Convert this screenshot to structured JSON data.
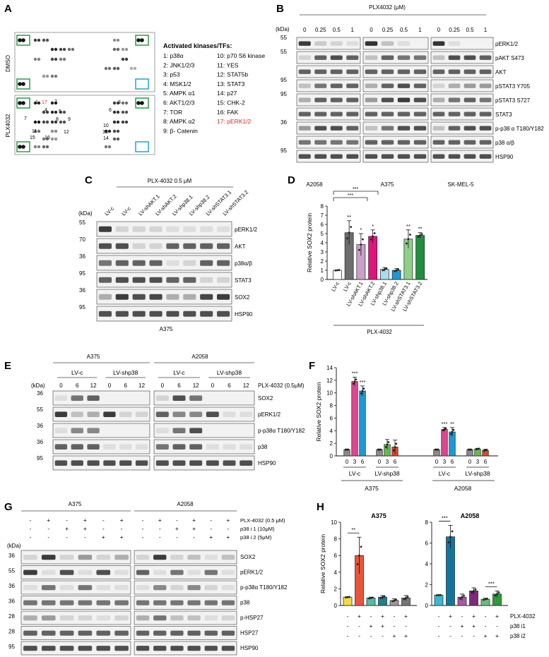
{
  "panels": {
    "A": {
      "letter": "A",
      "conditions": [
        "DMSO",
        "PLX4032"
      ],
      "legend_title": "Activated kinases/TFs:",
      "kinases_left": [
        "1: p38α",
        "2: JNK1/2/3",
        "3: p53",
        "4: MSK1/2",
        "5: AMPK α1",
        "6: AKT1/2/3",
        "7: TOR",
        "8: AMPK α2",
        "9: β- Catenin"
      ],
      "kinases_right": [
        "10: p70 S6 kinase",
        "11: YES",
        "12: STAT5b",
        "13: STAT3",
        "14: p27",
        "15: CHK-2",
        "16: FAK",
        "17: pERK1/2"
      ],
      "highlight_color": "#e0262b",
      "box_green": "#2e9a4a",
      "box_blue": "#1ea3d6",
      "dot_numbers": [
        "1",
        "17",
        "2",
        "4",
        "5",
        "3",
        "6",
        "7",
        "8",
        "9",
        "10",
        "11",
        "12",
        "13",
        "14",
        "15",
        "16"
      ]
    },
    "B": {
      "letter": "B",
      "treatment": "PLX4032 (μM)",
      "kda_label": "(kDa)",
      "doses": [
        "0",
        "0.25",
        "0.5",
        "1"
      ],
      "cell_lines": [
        "A2058",
        "A375",
        "SK-MEL-5"
      ],
      "bands": [
        "pERK1/2",
        "pAKT S473",
        "AKT",
        "pSTAT3 Y705",
        "pSTAT3 S727",
        "STAT3",
        "p-p38 α T180/Y182",
        "p38 α/β",
        "HSP90"
      ],
      "kda": [
        "55",
        "55",
        "95",
        "95",
        "36",
        "95"
      ]
    },
    "C": {
      "letter": "C",
      "treatment": "PLX-4032 0.5 μM",
      "kda_label": "(kDa)",
      "lanes": [
        "LV-c",
        "LV-c",
        "LV-shAKT.1",
        "LV-shAKT.2",
        "LV-shp38.1",
        "LV-shp38.2",
        "LV-shSTAT3.1",
        "LV-shSTAT3.2"
      ],
      "bands": [
        "pERK1/2",
        "AKT",
        "p38α/β",
        "STAT3",
        "SOX2",
        "HSP90"
      ],
      "kda": [
        "55",
        "70",
        "36",
        "95",
        "36",
        "95"
      ],
      "cell_line": "A375"
    },
    "D": {
      "letter": "D",
      "group_label": "PLX-4032",
      "sig_top": [
        "***",
        "***"
      ]
    },
    "E": {
      "letter": "E",
      "kda_label": "(kDa)",
      "cell_lines": [
        "A375",
        "A2058"
      ],
      "groups": [
        "LV-c",
        "LV-shp38"
      ],
      "times": [
        "0",
        "6",
        "12"
      ],
      "treatment": "PLX-4032 (0.5μM)",
      "bands": [
        "SOX2",
        "pERK1/2",
        "p-p38α T180/Y182",
        "p38",
        "HSP90"
      ],
      "kda": [
        "36",
        "55",
        "36",
        "36",
        "95"
      ]
    },
    "F": {
      "letter": "F",
      "time_ticks": [
        "0",
        "3",
        "6"
      ],
      "groups": [
        "LV-c",
        "LV-shp38"
      ],
      "cell_lines": [
        "A375",
        "A2058"
      ]
    },
    "G": {
      "letter": "G",
      "kda_label": "(kDa)",
      "cell_lines": [
        "A375",
        "A2058"
      ],
      "row_labels": [
        "PLX-4032 (0.5 μM)",
        "p38 i 1 (10μM)",
        "p38 i 2 (5μM)"
      ],
      "signs_plx": [
        "-",
        "+",
        "-",
        "+",
        "-",
        "+"
      ],
      "signs_i1": [
        "-",
        "-",
        "+",
        "+",
        "-",
        "-"
      ],
      "signs_i2": [
        "-",
        "-",
        "-",
        "-",
        "+",
        "+"
      ],
      "bands": [
        "SOX2",
        "pERK1/2",
        "p-p38α T180/Y182",
        "p38",
        "p-HSP27",
        "HSP27",
        "HSP90"
      ],
      "kda": [
        "36",
        "55",
        "36",
        "36",
        "28",
        "28",
        "95"
      ]
    },
    "H": {
      "letter": "H",
      "row_labels": [
        "PLX-4032",
        "p38 i1",
        "p38 i2"
      ],
      "signs_plx": [
        "-",
        "+",
        "-",
        "+",
        "-",
        "+"
      ],
      "signs_i1": [
        "-",
        "-",
        "+",
        "+",
        "-",
        "-"
      ],
      "signs_i2": [
        "-",
        "-",
        "-",
        "-",
        "+",
        "+"
      ]
    }
  },
  "chart_data": [
    {
      "panel": "D",
      "type": "bar",
      "ylabel": "Relative SOX2 protein",
      "ylim": [
        0,
        8
      ],
      "yticks": [
        "0",
        "1",
        "2",
        "3",
        "4",
        "5",
        "6",
        "7",
        "8"
      ],
      "categories": [
        "LV-c",
        "LV-c",
        "LV-shAKT.1",
        "LV-shAKT.2",
        "LV-shp38.1",
        "LV-shp38.2",
        "LV-shSTAT3.1",
        "LV-shSTAT3.2"
      ],
      "values": [
        1.0,
        5.1,
        3.8,
        4.7,
        1.1,
        1.0,
        4.4,
        4.8
      ],
      "errors": [
        0.05,
        1.3,
        1.2,
        0.7,
        0.2,
        0.2,
        1.0,
        0.3
      ],
      "colors": [
        "#ffffff",
        "#6d6d6d",
        "#c9a0c9",
        "#e2137d",
        "#a8dcef",
        "#1b9ad6",
        "#8fd08a",
        "#1f8f3e"
      ],
      "significance": [
        "",
        "**",
        "*",
        "*",
        "",
        "",
        "**",
        "**"
      ]
    },
    {
      "panel": "F",
      "type": "bar",
      "ylabel": "Relative SOX2 protein",
      "ylim": [
        0,
        14
      ],
      "yticks": [
        "0",
        "2",
        "4",
        "6",
        "8",
        "10",
        "12",
        "14"
      ],
      "categories": [
        "0",
        "3",
        "6",
        "0",
        "3",
        "6",
        "0",
        "3",
        "6",
        "0",
        "3",
        "6"
      ],
      "values": [
        1.0,
        11.8,
        10.3,
        1.0,
        1.8,
        1.4,
        1.0,
        4.2,
        3.8,
        1.0,
        1.1,
        0.9
      ],
      "errors": [
        0.0,
        0.7,
        0.8,
        0.0,
        0.8,
        1.1,
        0.0,
        0.3,
        0.7,
        0.0,
        0.1,
        0.15
      ],
      "colors": [
        "#8a8a8a",
        "#e0458f",
        "#1b9ad6",
        "#8a8a8a",
        "#5fbf4a",
        "#e0442c",
        "#8a8a8a",
        "#e0458f",
        "#1b9ad6",
        "#8a8a8a",
        "#5fbf4a",
        "#e0442c"
      ],
      "significance": [
        "",
        "***",
        "***",
        "",
        "",
        "",
        "",
        "***",
        "**",
        "",
        "",
        ""
      ]
    },
    {
      "panel": "H-A375",
      "type": "bar",
      "title": "A375",
      "ylabel": "Relative SOX2 protein",
      "ylim": [
        0,
        10
      ],
      "yticks": [
        "0",
        "2",
        "4",
        "6",
        "8",
        "10"
      ],
      "values": [
        1.0,
        6.0,
        0.9,
        1.0,
        0.6,
        0.9
      ],
      "errors": [
        0.05,
        2.2,
        0.1,
        0.2,
        0.2,
        0.3
      ],
      "colors": [
        "#f2d94a",
        "#e8553b",
        "#55bba6",
        "#1f7f8f",
        "#9a9a9a",
        "#777777"
      ],
      "significance_pairs": [
        {
          "from": 0,
          "to": 1,
          "label": "**"
        }
      ]
    },
    {
      "panel": "H-A2058",
      "type": "bar",
      "title": "A2058",
      "ylabel": "",
      "ylim": [
        0,
        8
      ],
      "yticks": [
        "0",
        "2",
        "4",
        "6",
        "8"
      ],
      "values": [
        1.0,
        6.6,
        0.8,
        1.4,
        0.6,
        1.1
      ],
      "errors": [
        0.02,
        1.1,
        0.3,
        0.3,
        0.1,
        0.3
      ],
      "colors": [
        "#3bb8cf",
        "#11769e",
        "#a45aa7",
        "#7c2a7e",
        "#63c17b",
        "#2c9b3a"
      ],
      "significance_pairs": [
        {
          "from": 0,
          "to": 1,
          "label": "***"
        },
        {
          "from": 4,
          "to": 5,
          "label": "***"
        }
      ]
    }
  ]
}
